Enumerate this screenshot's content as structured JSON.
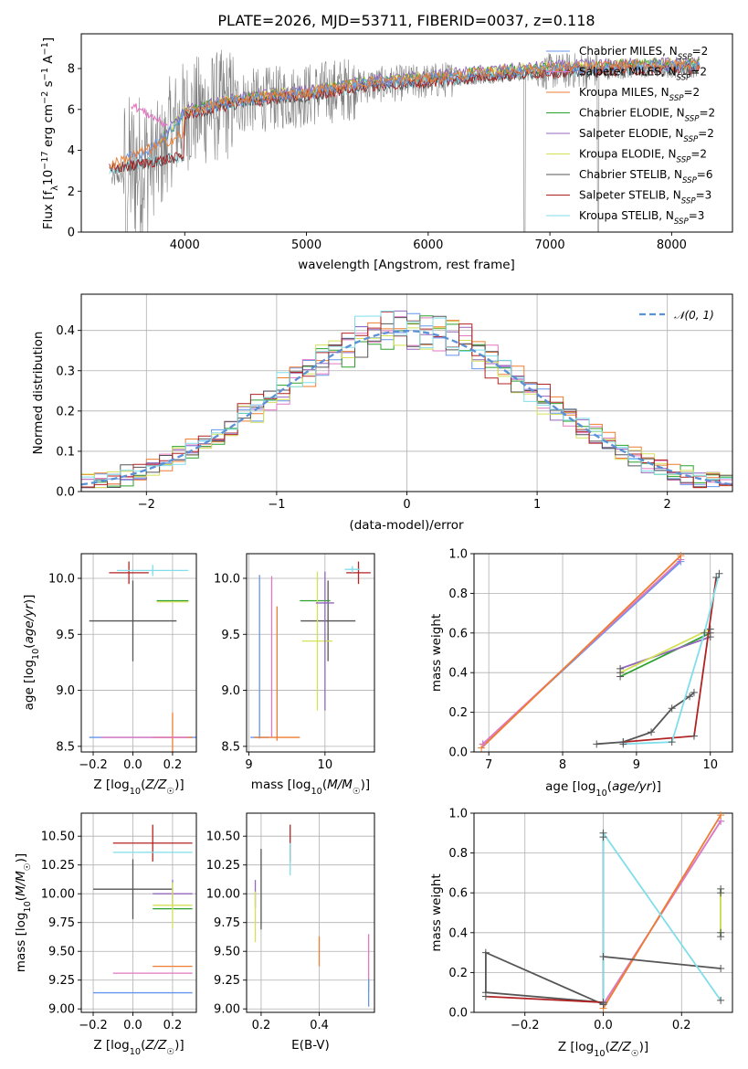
{
  "figure": {
    "colors": {
      "Chabrier MILES": "#6495ed",
      "Salpeter MILES": "#e377c2",
      "Kroupa MILES": "#ed7d31",
      "Chabrier ELODIE": "#2ca02c",
      "Salpeter ELODIE": "#9467bd",
      "Kroupa ELODIE": "#d4e157",
      "Chabrier STELIB": "#555555",
      "Salpeter STELIB": "#b22222",
      "Kroupa STELIB": "#80deea",
      "data": "#808080",
      "normal": "#5b8fd6"
    }
  },
  "chart_data": [
    {
      "id": "spectrum",
      "type": "line",
      "title": "PLATE=2026, MJD=53711, FIBERID=0037, z=0.118",
      "xlabel": "wavelength [Angstrom, rest frame]",
      "ylabel": "Flux [f_λ10⁻¹⁷ erg cm⁻² s⁻¹ A⁻¹]",
      "xlim": [
        3150,
        8500
      ],
      "ylim": [
        0,
        9.7
      ],
      "xticks": [
        4000,
        5000,
        6000,
        7000,
        8000
      ],
      "yticks": [
        0,
        2,
        4,
        6,
        8
      ],
      "legend_loc": "upper right",
      "legend": [
        "Chabrier MILES, N_SSP=2",
        "Salpeter MILES, N_SSP=2",
        "Kroupa MILES, N_SSP=2",
        "Chabrier ELODIE, N_SSP=2",
        "Salpeter ELODIE, N_SSP=2",
        "Kroupa ELODIE, N_SSP=2",
        "Chabrier STELIB, N_SSP=6",
        "Salpeter STELIB, N_SSP=3",
        "Kroupa STELIB, N_SSP=3"
      ],
      "series": [
        {
          "name": "Kroupa ELODIE, N_SSP=2",
          "x": [
            3400,
            3550,
            3700,
            3850,
            4000,
            4250,
            4500,
            5000,
            5500,
            6000,
            6500,
            7000,
            7500,
            8200
          ],
          "y": [
            3.1,
            3.7,
            4.1,
            4.8,
            5.9,
            6.3,
            6.6,
            6.9,
            7.4,
            7.6,
            7.9,
            8.1,
            8.2,
            8.3
          ]
        },
        {
          "name": "Salpeter MILES, N_SSP=2",
          "x": [
            3550,
            3650,
            3750,
            3850
          ],
          "y": [
            6.3,
            6.0,
            5.6,
            5.2
          ]
        },
        {
          "name": "Kroupa MILES, N_SSP=2",
          "x": [
            3400,
            3550,
            3700,
            3850,
            4000
          ],
          "y": [
            3.2,
            3.8,
            4.2,
            4.5,
            4.8
          ]
        },
        {
          "name": "Kroupa STELIB, N_SSP=3",
          "x": [
            3400,
            3550,
            3700,
            3850,
            4000,
            4250,
            4500,
            5000,
            5500,
            6000,
            6500,
            7000,
            7500,
            8200
          ],
          "y": [
            3.0,
            3.3,
            3.5,
            3.6,
            4.9,
            5.5,
            6.0,
            6.8,
            7.2,
            7.6,
            7.8,
            8.1,
            8.2,
            8.1
          ]
        }
      ]
    },
    {
      "id": "residuals",
      "type": "line",
      "xlabel": "(data-model)/error",
      "ylabel": "Normed distribution",
      "xlim": [
        -2.5,
        2.5
      ],
      "ylim": [
        0,
        0.49
      ],
      "xticks": [
        -2,
        -1,
        0,
        1,
        2
      ],
      "yticks": [
        0.0,
        0.1,
        0.2,
        0.3,
        0.4
      ],
      "legend_loc": "upper right",
      "legend": [
        "𝒩(0, 1)"
      ],
      "series": [
        {
          "name": "𝒩(0, 1)",
          "style": "dashed",
          "x": "normal pdf",
          "y": "mean 0, sigma 1"
        }
      ]
    },
    {
      "id": "age-vs-z",
      "type": "scatter",
      "xlabel": "Z [log₁₀(Z/Z☉)]",
      "ylabel": "age  [log₁₀(age/yr)]",
      "xlim": [
        -0.26,
        0.32
      ],
      "ylim": [
        8.45,
        10.22
      ],
      "xticks": [
        -0.2,
        0.0,
        0.2
      ],
      "xticklabels": [
        "−0.2",
        "0.0",
        "0.2"
      ],
      "yticks": [
        8.5,
        9.0,
        9.5,
        10.0
      ],
      "points": [
        {
          "m": "Chabrier MILES",
          "x": 0.08,
          "xe": 0.3,
          "y": 8.58,
          "ye": 0.0
        },
        {
          "m": "Kroupa MILES",
          "x": 0.2,
          "xe": 0.1,
          "y": 8.58,
          "ye": 0.22
        },
        {
          "m": "Salpeter MILES",
          "x": 0.06,
          "xe": 0.22,
          "y": 8.58,
          "ye": 0.0
        },
        {
          "m": "Chabrier STELIB",
          "x": 0.0,
          "xe": 0.22,
          "y": 9.62,
          "ye": 0.36
        },
        {
          "m": "Salpeter STELIB",
          "x": -0.02,
          "xe": 0.1,
          "y": 10.05,
          "ye": 0.1
        },
        {
          "m": "Kroupa STELIB",
          "x": 0.1,
          "xe": 0.18,
          "y": 10.07,
          "ye": 0.05
        },
        {
          "m": "Chabrier ELODIE",
          "x": 0.2,
          "xe": 0.08,
          "y": 9.8,
          "ye": 0.0
        },
        {
          "m": "Kroupa ELODIE",
          "x": 0.2,
          "xe": 0.08,
          "y": 9.79,
          "ye": 0.0
        }
      ]
    },
    {
      "id": "age-vs-mass",
      "type": "scatter",
      "xlabel": "mass [log₁₀(M/M☉)]",
      "ylabel": "",
      "xlim": [
        8.97,
        10.65
      ],
      "ylim": [
        8.45,
        10.22
      ],
      "xticks": [
        9,
        10
      ],
      "yticks": [
        8.5,
        9.0,
        9.5,
        10.0
      ],
      "points": [
        {
          "m": "Chabrier MILES",
          "x": 9.14,
          "xe": 0.12,
          "y": 8.58,
          "ye": 0.0
        },
        {
          "m": "Chabrier MILES",
          "x": 9.14,
          "xe": 0.0,
          "y": 9.3,
          "ye": 0.73
        },
        {
          "m": "Kroupa MILES",
          "x": 9.37,
          "xe": 0.3,
          "y": 8.58,
          "ye": 0.0
        },
        {
          "m": "Kroupa MILES",
          "x": 9.37,
          "xe": 0.0,
          "y": 9.15,
          "ye": 0.6
        },
        {
          "m": "Salpeter MILES",
          "x": 9.3,
          "xe": 0.0,
          "y": 9.3,
          "ye": 0.72
        },
        {
          "m": "Chabrier STELIB",
          "x": 10.04,
          "xe": 0.36,
          "y": 9.62,
          "ye": 0.36
        },
        {
          "m": "Salpeter STELIB",
          "x": 10.44,
          "xe": 0.16,
          "y": 10.05,
          "ye": 0.1
        },
        {
          "m": "Kroupa STELIB",
          "x": 10.36,
          "xe": 0.1,
          "y": 10.08,
          "ye": 0.03
        },
        {
          "m": "Chabrier ELODIE",
          "x": 9.87,
          "xe": 0.2,
          "y": 9.8,
          "ye": 0.0
        },
        {
          "m": "Kroupa ELODIE",
          "x": 9.9,
          "xe": 0.2,
          "y": 9.44,
          "ye": 0.62
        },
        {
          "m": "Salpeter ELODIE",
          "x": 10.0,
          "xe": 0.12,
          "y": 9.78,
          "ye": 0.0
        },
        {
          "m": "Salpeter ELODIE",
          "x": 10.0,
          "xe": 0.0,
          "y": 9.44,
          "ye": 0.62
        }
      ]
    },
    {
      "id": "weight-vs-age",
      "type": "line",
      "xlabel": "age  [log₁₀(age/yr)]",
      "ylabel": "mass weight",
      "xlim": [
        6.8,
        10.3
      ],
      "ylim": [
        0,
        1
      ],
      "xticks": [
        7,
        8,
        9,
        10
      ],
      "yticks": [
        0.0,
        0.2,
        0.4,
        0.6,
        0.8,
        1.0
      ],
      "series": [
        {
          "name": "Chabrier MILES",
          "x": [
            6.92,
            9.6
          ],
          "y": [
            0.04,
            0.96
          ]
        },
        {
          "name": "Salpeter MILES",
          "x": [
            6.92,
            9.6
          ],
          "y": [
            0.04,
            0.97
          ]
        },
        {
          "name": "Kroupa MILES",
          "x": [
            6.9,
            9.6
          ],
          "y": [
            0.02,
            0.99
          ]
        },
        {
          "name": "Chabrier ELODIE",
          "x": [
            8.78,
            10.0
          ],
          "y": [
            0.38,
            0.6
          ]
        },
        {
          "name": "Salpeter ELODIE",
          "x": [
            8.78,
            10.0
          ],
          "y": [
            0.42,
            0.58
          ]
        },
        {
          "name": "Kroupa ELODIE",
          "x": [
            8.78,
            10.0
          ],
          "y": [
            0.4,
            0.62
          ]
        },
        {
          "name": "Chabrier STELIB",
          "x": [
            8.46,
            8.82,
            9.2,
            9.48,
            9.72,
            9.78
          ],
          "y": [
            0.04,
            0.05,
            0.1,
            0.22,
            0.28,
            0.3
          ]
        },
        {
          "name": "Salpeter STELIB",
          "x": [
            8.82,
            9.78,
            10.08
          ],
          "y": [
            0.05,
            0.08,
            0.88
          ]
        },
        {
          "name": "Kroupa STELIB",
          "x": [
            8.82,
            9.48,
            9.92,
            10.12
          ],
          "y": [
            0.04,
            0.05,
            0.6,
            0.9
          ]
        }
      ]
    },
    {
      "id": "mass-vs-z",
      "type": "scatter",
      "xlabel": "Z [log₁₀(Z/Z☉)]",
      "ylabel": "mass [log₁₀(M/M☉)]",
      "xlim": [
        -0.26,
        0.32
      ],
      "ylim": [
        8.97,
        10.7
      ],
      "xticks": [
        -0.2,
        0.0,
        0.2
      ],
      "xticklabels": [
        "−0.2",
        "0.0",
        "0.2"
      ],
      "yticks": [
        9.0,
        9.25,
        9.5,
        9.75,
        10.0,
        10.25,
        10.5
      ],
      "points": [
        {
          "m": "Chabrier MILES",
          "x": 0.05,
          "xe": 0.25,
          "y": 9.14,
          "ye": 0.0
        },
        {
          "m": "Salpeter MILES",
          "x": 0.1,
          "xe": 0.2,
          "y": 9.31,
          "ye": 0.0
        },
        {
          "m": "Kroupa MILES",
          "x": 0.2,
          "xe": 0.1,
          "y": 9.37,
          "ye": 0.0
        },
        {
          "m": "Chabrier STELIB",
          "x": 0.0,
          "xe": 0.2,
          "y": 10.04,
          "ye": 0.26
        },
        {
          "m": "Salpeter STELIB",
          "x": 0.1,
          "xe": 0.2,
          "y": 10.44,
          "ye": 0.16
        },
        {
          "m": "Kroupa STELIB",
          "x": 0.1,
          "xe": 0.2,
          "y": 10.36,
          "ye": 0.0
        },
        {
          "m": "Salpeter ELODIE",
          "x": 0.2,
          "xe": 0.1,
          "y": 10.0,
          "ye": 0.12
        },
        {
          "m": "Chabrier ELODIE",
          "x": 0.2,
          "xe": 0.1,
          "y": 9.87,
          "ye": 0.0
        },
        {
          "m": "Kroupa ELODIE",
          "x": 0.2,
          "xe": 0.1,
          "y": 9.9,
          "ye": 0.2
        }
      ]
    },
    {
      "id": "mass-vs-ebv",
      "type": "scatter",
      "xlabel": "E(B-V)",
      "ylabel": "",
      "xlim": [
        0.15,
        0.59
      ],
      "ylim": [
        8.97,
        10.7
      ],
      "xticks": [
        0.2,
        0.4
      ],
      "yticks": [
        9.0,
        9.25,
        9.5,
        9.75,
        10.0,
        10.25,
        10.5
      ],
      "points": [
        {
          "m": "Chabrier STELIB",
          "x": 0.2,
          "y": 10.04,
          "ye": 0.35
        },
        {
          "m": "Salpeter ELODIE",
          "x": 0.18,
          "y": 10.0,
          "ye": 0.12
        },
        {
          "m": "Kroupa ELODIE",
          "x": 0.18,
          "y": 9.8,
          "ye": 0.22
        },
        {
          "m": "Salpeter STELIB",
          "x": 0.3,
          "y": 10.44,
          "ye": 0.16
        },
        {
          "m": "Kroupa STELIB",
          "x": 0.3,
          "y": 10.3,
          "ye": 0.14
        },
        {
          "m": "Kroupa MILES",
          "x": 0.4,
          "y": 9.5,
          "ye": 0.13
        },
        {
          "m": "Salpeter MILES",
          "x": 0.57,
          "y": 9.4,
          "ye": 0.25
        },
        {
          "m": "Chabrier MILES",
          "x": 0.57,
          "y": 9.14,
          "ye": 0.12
        }
      ]
    },
    {
      "id": "weight-vs-z",
      "type": "line",
      "xlabel": "Z [log₁₀(Z/Z☉)]",
      "ylabel": "mass weight",
      "xlim": [
        -0.33,
        0.33
      ],
      "ylim": [
        0,
        1
      ],
      "xticks": [
        -0.2,
        0.0,
        0.2
      ],
      "xticklabels": [
        "−0.2",
        "0.0",
        "0.2"
      ],
      "yticks": [
        0.0,
        0.2,
        0.4,
        0.6,
        0.8,
        1.0
      ],
      "series": [
        {
          "name": "Chabrier MILES",
          "x": [
            0.0,
            0.3
          ],
          "y": [
            0.04,
            0.96
          ]
        },
        {
          "name": "Salpeter MILES",
          "x": [
            0.0,
            0.3
          ],
          "y": [
            0.04,
            0.96
          ]
        },
        {
          "name": "Kroupa MILES",
          "x": [
            0.0,
            0.3
          ],
          "y": [
            0.02,
            0.99
          ]
        },
        {
          "name": "Chabrier ELODIE",
          "x": [
            0.3,
            0.3
          ],
          "y": [
            0.38,
            0.62
          ]
        },
        {
          "name": "Kroupa ELODIE",
          "x": [
            0.3,
            0.3
          ],
          "y": [
            0.4,
            0.6
          ]
        },
        {
          "name": "Chabrier STELIB",
          "x": [
            0.3,
            0.0,
            0.0,
            -0.3,
            -0.3,
            0.0
          ],
          "y": [
            0.22,
            0.28,
            0.04,
            0.3,
            0.1,
            0.05
          ]
        },
        {
          "name": "Salpeter STELIB",
          "x": [
            -0.3,
            0.0,
            0.0
          ],
          "y": [
            0.08,
            0.05,
            0.88
          ]
        },
        {
          "name": "Kroupa STELIB",
          "x": [
            0.0,
            0.0,
            0.3
          ],
          "y": [
            0.04,
            0.9,
            0.06
          ]
        }
      ]
    }
  ]
}
